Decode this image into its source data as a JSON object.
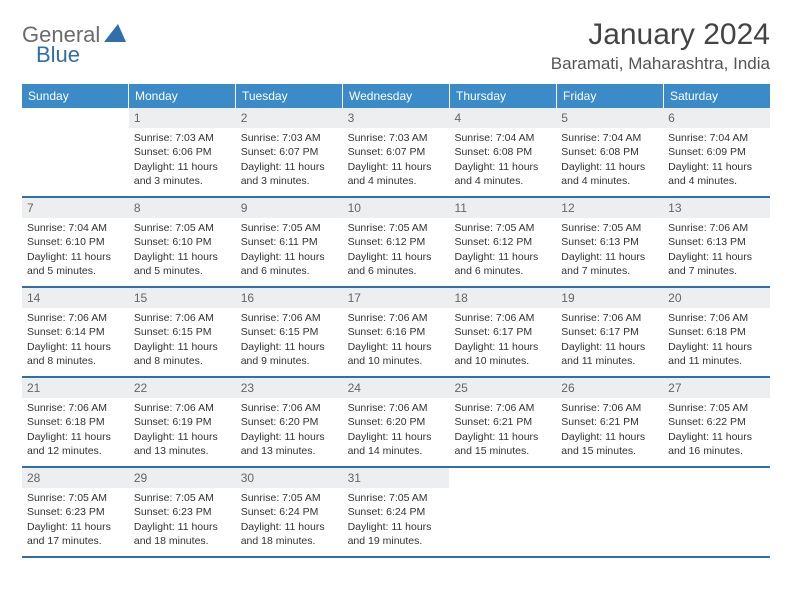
{
  "brand": {
    "general": "General",
    "blue": "Blue"
  },
  "title": "January 2024",
  "location": "Baramati, Maharashtra, India",
  "colors": {
    "header_bg": "#3b8bc9",
    "rule": "#2f6fab",
    "daynum_bg": "#eceef0",
    "text": "#333333"
  },
  "dayNames": [
    "Sunday",
    "Monday",
    "Tuesday",
    "Wednesday",
    "Thursday",
    "Friday",
    "Saturday"
  ],
  "weeks": [
    [
      {
        "n": "",
        "lines": []
      },
      {
        "n": "1",
        "lines": [
          "Sunrise: 7:03 AM",
          "Sunset: 6:06 PM",
          "Daylight: 11 hours and 3 minutes."
        ]
      },
      {
        "n": "2",
        "lines": [
          "Sunrise: 7:03 AM",
          "Sunset: 6:07 PM",
          "Daylight: 11 hours and 3 minutes."
        ]
      },
      {
        "n": "3",
        "lines": [
          "Sunrise: 7:03 AM",
          "Sunset: 6:07 PM",
          "Daylight: 11 hours and 4 minutes."
        ]
      },
      {
        "n": "4",
        "lines": [
          "Sunrise: 7:04 AM",
          "Sunset: 6:08 PM",
          "Daylight: 11 hours and 4 minutes."
        ]
      },
      {
        "n": "5",
        "lines": [
          "Sunrise: 7:04 AM",
          "Sunset: 6:08 PM",
          "Daylight: 11 hours and 4 minutes."
        ]
      },
      {
        "n": "6",
        "lines": [
          "Sunrise: 7:04 AM",
          "Sunset: 6:09 PM",
          "Daylight: 11 hours and 4 minutes."
        ]
      }
    ],
    [
      {
        "n": "7",
        "lines": [
          "Sunrise: 7:04 AM",
          "Sunset: 6:10 PM",
          "Daylight: 11 hours and 5 minutes."
        ]
      },
      {
        "n": "8",
        "lines": [
          "Sunrise: 7:05 AM",
          "Sunset: 6:10 PM",
          "Daylight: 11 hours and 5 minutes."
        ]
      },
      {
        "n": "9",
        "lines": [
          "Sunrise: 7:05 AM",
          "Sunset: 6:11 PM",
          "Daylight: 11 hours and 6 minutes."
        ]
      },
      {
        "n": "10",
        "lines": [
          "Sunrise: 7:05 AM",
          "Sunset: 6:12 PM",
          "Daylight: 11 hours and 6 minutes."
        ]
      },
      {
        "n": "11",
        "lines": [
          "Sunrise: 7:05 AM",
          "Sunset: 6:12 PM",
          "Daylight: 11 hours and 6 minutes."
        ]
      },
      {
        "n": "12",
        "lines": [
          "Sunrise: 7:05 AM",
          "Sunset: 6:13 PM",
          "Daylight: 11 hours and 7 minutes."
        ]
      },
      {
        "n": "13",
        "lines": [
          "Sunrise: 7:06 AM",
          "Sunset: 6:13 PM",
          "Daylight: 11 hours and 7 minutes."
        ]
      }
    ],
    [
      {
        "n": "14",
        "lines": [
          "Sunrise: 7:06 AM",
          "Sunset: 6:14 PM",
          "Daylight: 11 hours and 8 minutes."
        ]
      },
      {
        "n": "15",
        "lines": [
          "Sunrise: 7:06 AM",
          "Sunset: 6:15 PM",
          "Daylight: 11 hours and 8 minutes."
        ]
      },
      {
        "n": "16",
        "lines": [
          "Sunrise: 7:06 AM",
          "Sunset: 6:15 PM",
          "Daylight: 11 hours and 9 minutes."
        ]
      },
      {
        "n": "17",
        "lines": [
          "Sunrise: 7:06 AM",
          "Sunset: 6:16 PM",
          "Daylight: 11 hours and 10 minutes."
        ]
      },
      {
        "n": "18",
        "lines": [
          "Sunrise: 7:06 AM",
          "Sunset: 6:17 PM",
          "Daylight: 11 hours and 10 minutes."
        ]
      },
      {
        "n": "19",
        "lines": [
          "Sunrise: 7:06 AM",
          "Sunset: 6:17 PM",
          "Daylight: 11 hours and 11 minutes."
        ]
      },
      {
        "n": "20",
        "lines": [
          "Sunrise: 7:06 AM",
          "Sunset: 6:18 PM",
          "Daylight: 11 hours and 11 minutes."
        ]
      }
    ],
    [
      {
        "n": "21",
        "lines": [
          "Sunrise: 7:06 AM",
          "Sunset: 6:18 PM",
          "Daylight: 11 hours and 12 minutes."
        ]
      },
      {
        "n": "22",
        "lines": [
          "Sunrise: 7:06 AM",
          "Sunset: 6:19 PM",
          "Daylight: 11 hours and 13 minutes."
        ]
      },
      {
        "n": "23",
        "lines": [
          "Sunrise: 7:06 AM",
          "Sunset: 6:20 PM",
          "Daylight: 11 hours and 13 minutes."
        ]
      },
      {
        "n": "24",
        "lines": [
          "Sunrise: 7:06 AM",
          "Sunset: 6:20 PM",
          "Daylight: 11 hours and 14 minutes."
        ]
      },
      {
        "n": "25",
        "lines": [
          "Sunrise: 7:06 AM",
          "Sunset: 6:21 PM",
          "Daylight: 11 hours and 15 minutes."
        ]
      },
      {
        "n": "26",
        "lines": [
          "Sunrise: 7:06 AM",
          "Sunset: 6:21 PM",
          "Daylight: 11 hours and 15 minutes."
        ]
      },
      {
        "n": "27",
        "lines": [
          "Sunrise: 7:05 AM",
          "Sunset: 6:22 PM",
          "Daylight: 11 hours and 16 minutes."
        ]
      }
    ],
    [
      {
        "n": "28",
        "lines": [
          "Sunrise: 7:05 AM",
          "Sunset: 6:23 PM",
          "Daylight: 11 hours and 17 minutes."
        ]
      },
      {
        "n": "29",
        "lines": [
          "Sunrise: 7:05 AM",
          "Sunset: 6:23 PM",
          "Daylight: 11 hours and 18 minutes."
        ]
      },
      {
        "n": "30",
        "lines": [
          "Sunrise: 7:05 AM",
          "Sunset: 6:24 PM",
          "Daylight: 11 hours and 18 minutes."
        ]
      },
      {
        "n": "31",
        "lines": [
          "Sunrise: 7:05 AM",
          "Sunset: 6:24 PM",
          "Daylight: 11 hours and 19 minutes."
        ]
      },
      {
        "n": "",
        "lines": []
      },
      {
        "n": "",
        "lines": []
      },
      {
        "n": "",
        "lines": []
      }
    ]
  ]
}
